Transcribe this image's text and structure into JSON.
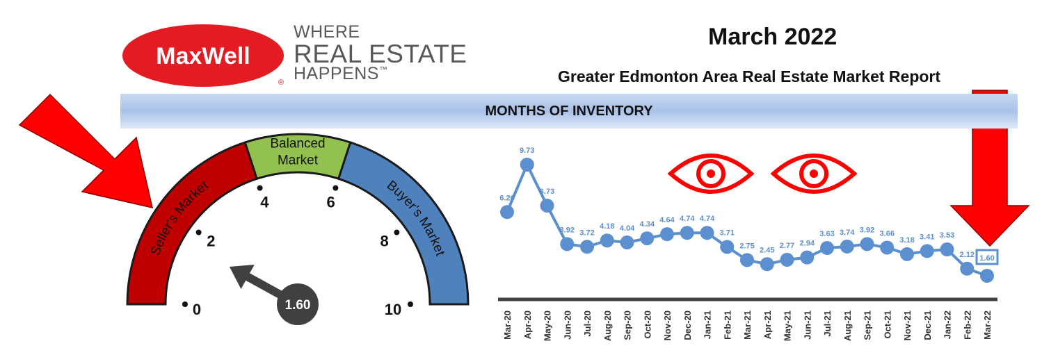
{
  "header": {
    "brand": "MaxWell",
    "brand_mark": "®",
    "tagline_1": "WHERE",
    "tagline_2": "REAL ESTATE",
    "tagline_3": "HAPPENS",
    "tagline_tm": "™",
    "month": "March 2022",
    "subtitle": "Greater Edmonton Area Real Estate Market Report"
  },
  "banner": {
    "title": "MONTHS OF INVENTORY"
  },
  "colors": {
    "seller": "#c00000",
    "balanced": "#92c14f",
    "buyer": "#4f81bd",
    "line": "#5b8fd0",
    "arrow": "#ff0000",
    "needle": "#404040"
  },
  "icons": [
    "arrow-down-right-icon",
    "arrow-down-icon",
    "eye-icon",
    "eye-icon",
    "needle-arrow-icon"
  ],
  "gauge": {
    "segments": [
      {
        "label": "Seller's Market",
        "from": 0,
        "to": 4
      },
      {
        "label": "Balanced Market",
        "from": 4,
        "to": 6,
        "lines": [
          "Balanced",
          "Market"
        ]
      },
      {
        "label": "Buyer's Market",
        "from": 6,
        "to": 10
      }
    ],
    "ticks": [
      0,
      2,
      4,
      6,
      8,
      10
    ],
    "value": 1.6,
    "value_label": "1.60"
  },
  "chart_data": {
    "type": "line",
    "title": "",
    "xlabel": "",
    "ylabel": "",
    "categories": [
      "Mar-20",
      "Apr-20",
      "May-20",
      "Jun-20",
      "Jul-20",
      "Aug-20",
      "Sep-20",
      "Oct-20",
      "Nov-20",
      "Dec-20",
      "Jan-21",
      "Feb-21",
      "Mar-21",
      "Apr-21",
      "May-21",
      "Jun-21",
      "Jul-21",
      "Aug-21",
      "Sep-21",
      "Oct-21",
      "Nov-21",
      "Dec-21",
      "Jan-22",
      "Feb-22",
      "Mar-22"
    ],
    "values": [
      6.26,
      9.73,
      6.73,
      3.92,
      3.72,
      4.18,
      4.04,
      4.34,
      4.64,
      4.74,
      4.74,
      3.71,
      2.75,
      2.45,
      2.77,
      2.94,
      3.63,
      3.74,
      3.92,
      3.66,
      3.18,
      3.41,
      3.53,
      2.12,
      1.6
    ],
    "labels": [
      "6.26",
      "9.73",
      "6.73",
      "3.92",
      "3.72",
      "4.18",
      "4.04",
      "4.34",
      "4.64",
      "4.74",
      "4.74",
      "3.71",
      "2.75",
      "2.45",
      "2.77",
      "2.94",
      "3.63",
      "3.74",
      "3.92",
      "3.66",
      "3.18",
      "3.41",
      "3.53",
      "2.12",
      "1.60"
    ],
    "ylim": [
      0,
      10
    ],
    "highlight_last": true,
    "grid": false
  }
}
